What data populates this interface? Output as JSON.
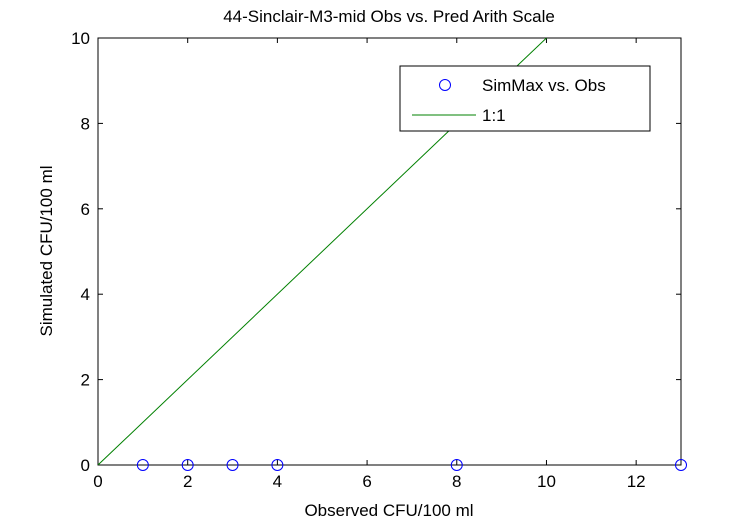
{
  "chart_data": {
    "type": "scatter",
    "title": "44-Sinclair-M3-mid Obs vs. Pred Arith Scale",
    "xlabel": "Observed CFU/100 ml",
    "ylabel": "Simulated CFU/100 ml",
    "xlim": [
      0,
      13
    ],
    "ylim": [
      0,
      10
    ],
    "xticks": [
      0,
      2,
      4,
      6,
      8,
      10,
      12
    ],
    "yticks": [
      0,
      2,
      4,
      6,
      8,
      10
    ],
    "grid": false,
    "legend_position": "top-right",
    "series": [
      {
        "name": "SimMax vs. Obs",
        "type": "scatter",
        "marker": "circle",
        "color": "#0000ff",
        "x": [
          1,
          2,
          3,
          4,
          8,
          13
        ],
        "y": [
          0,
          0,
          0,
          0,
          0,
          0
        ]
      },
      {
        "name": "1:1",
        "type": "line",
        "color": "#008000",
        "x": [
          0,
          13
        ],
        "y": [
          0,
          13
        ]
      }
    ]
  }
}
